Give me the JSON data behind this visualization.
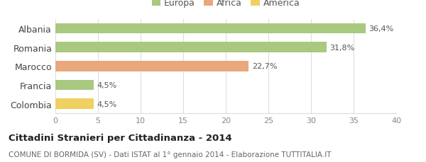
{
  "categories": [
    "Colombia",
    "Francia",
    "Marocco",
    "Romania",
    "Albania"
  ],
  "values": [
    4.5,
    4.5,
    22.7,
    31.8,
    36.4
  ],
  "labels": [
    "4,5%",
    "4,5%",
    "22,7%",
    "31,8%",
    "36,4%"
  ],
  "bar_colors": [
    "#f0d060",
    "#a8c97f",
    "#e8a87c",
    "#a8c97f",
    "#a8c97f"
  ],
  "legend": [
    {
      "label": "Europa",
      "color": "#a8c97f"
    },
    {
      "label": "Africa",
      "color": "#e8a87c"
    },
    {
      "label": "America",
      "color": "#f0d060"
    }
  ],
  "xlim": [
    0,
    40
  ],
  "xticks": [
    0,
    5,
    10,
    15,
    20,
    25,
    30,
    35,
    40
  ],
  "title": "Cittadini Stranieri per Cittadinanza - 2014",
  "subtitle": "COMUNE DI BORMIDA (SV) - Dati ISTAT al 1° gennaio 2014 - Elaborazione TUTTITALIA.IT",
  "background_color": "#ffffff",
  "grid_color": "#dddddd",
  "bar_height": 0.55,
  "label_fontsize": 8,
  "tick_fontsize": 8,
  "ytick_fontsize": 9
}
